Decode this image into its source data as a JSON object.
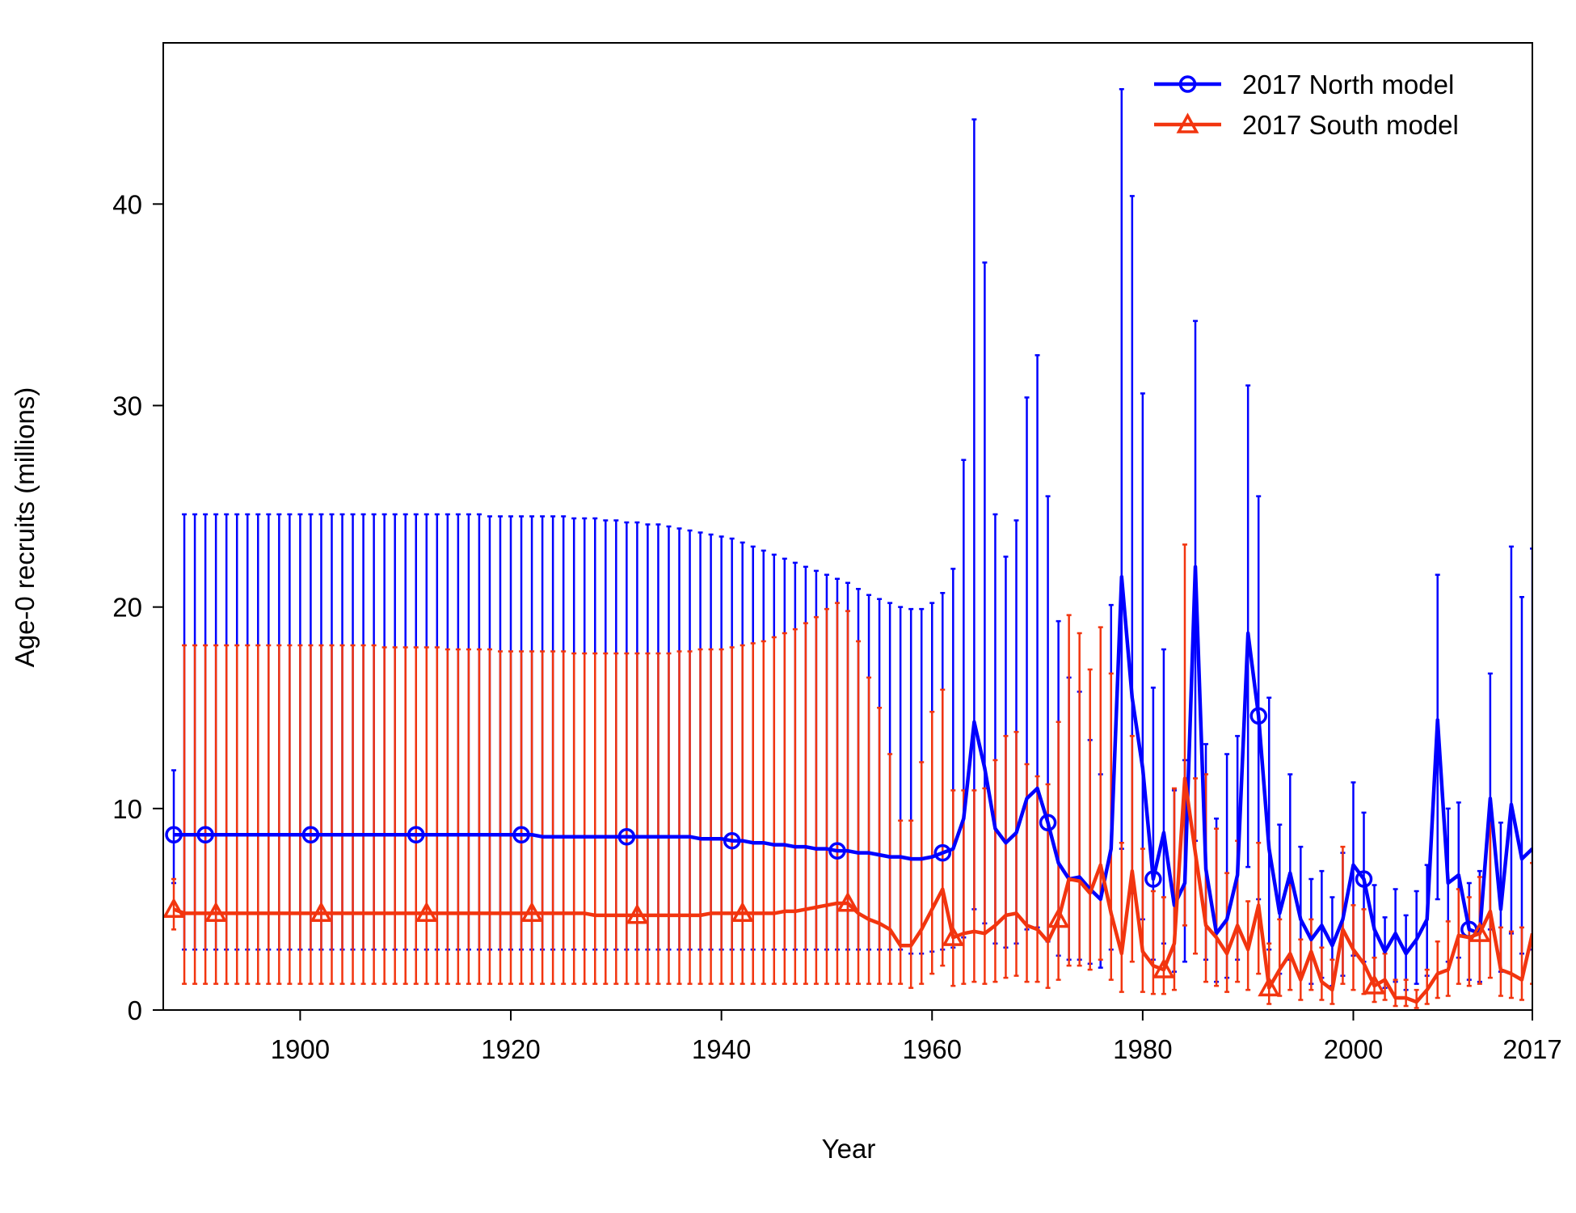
{
  "chart_data": {
    "type": "line",
    "x_label": "Year",
    "y_label": "Age-0 recruits (millions)",
    "xlim": [
      1887,
      2017
    ],
    "ylim": [
      0,
      48
    ],
    "xticks": [
      1900,
      1920,
      1940,
      1960,
      1980,
      2000,
      2017
    ],
    "yticks": [
      0,
      10,
      20,
      30,
      40
    ],
    "legend": "top-right",
    "x": [
      1888,
      1889,
      1890,
      1891,
      1892,
      1893,
      1894,
      1895,
      1896,
      1897,
      1898,
      1899,
      1900,
      1901,
      1902,
      1903,
      1904,
      1905,
      1906,
      1907,
      1908,
      1909,
      1910,
      1911,
      1912,
      1913,
      1914,
      1915,
      1916,
      1917,
      1918,
      1919,
      1920,
      1921,
      1922,
      1923,
      1924,
      1925,
      1926,
      1927,
      1928,
      1929,
      1930,
      1931,
      1932,
      1933,
      1934,
      1935,
      1936,
      1937,
      1938,
      1939,
      1940,
      1941,
      1942,
      1943,
      1944,
      1945,
      1946,
      1947,
      1948,
      1949,
      1950,
      1951,
      1952,
      1953,
      1954,
      1955,
      1956,
      1957,
      1958,
      1959,
      1960,
      1961,
      1962,
      1963,
      1964,
      1965,
      1966,
      1967,
      1968,
      1969,
      1970,
      1971,
      1972,
      1973,
      1974,
      1975,
      1976,
      1977,
      1978,
      1979,
      1980,
      1981,
      1982,
      1983,
      1984,
      1985,
      1986,
      1987,
      1988,
      1989,
      1990,
      1991,
      1992,
      1993,
      1994,
      1995,
      1996,
      1997,
      1998,
      1999,
      2000,
      2001,
      2002,
      2003,
      2004,
      2005,
      2006,
      2007,
      2008,
      2009,
      2010,
      2011,
      2012,
      2013,
      2014,
      2015,
      2016,
      2017
    ],
    "series": [
      {
        "name": "2017 North model",
        "color": "#0000ff",
        "marker": "circle",
        "values": [
          8.7,
          8.7,
          8.7,
          8.7,
          8.7,
          8.7,
          8.7,
          8.7,
          8.7,
          8.7,
          8.7,
          8.7,
          8.7,
          8.7,
          8.7,
          8.7,
          8.7,
          8.7,
          8.7,
          8.7,
          8.7,
          8.7,
          8.7,
          8.7,
          8.7,
          8.7,
          8.7,
          8.7,
          8.7,
          8.7,
          8.7,
          8.7,
          8.7,
          8.7,
          8.7,
          8.6,
          8.6,
          8.6,
          8.6,
          8.6,
          8.6,
          8.6,
          8.6,
          8.6,
          8.6,
          8.6,
          8.6,
          8.6,
          8.6,
          8.6,
          8.5,
          8.5,
          8.5,
          8.4,
          8.4,
          8.3,
          8.3,
          8.2,
          8.2,
          8.1,
          8.1,
          8.0,
          8.0,
          7.9,
          7.9,
          7.8,
          7.8,
          7.7,
          7.6,
          7.6,
          7.5,
          7.5,
          7.6,
          7.8,
          8.0,
          9.5,
          14.3,
          12.0,
          9.0,
          8.3,
          8.8,
          10.5,
          11.0,
          9.3,
          7.3,
          6.5,
          6.6,
          6.0,
          5.5,
          8.0,
          21.5,
          15.5,
          12.0,
          6.5,
          8.8,
          5.2,
          6.3,
          22.0,
          7.0,
          3.8,
          4.5,
          6.7,
          18.7,
          14.6,
          8.0,
          4.8,
          6.8,
          4.5,
          3.5,
          4.2,
          3.2,
          4.5,
          7.2,
          6.5,
          4.0,
          2.9,
          3.8,
          2.8,
          3.5,
          4.5,
          14.4,
          6.3,
          6.7,
          4.0,
          3.8,
          10.5,
          5.0,
          10.2,
          7.5,
          8.0
        ],
        "lower": [
          6.3,
          3.0,
          3.0,
          3.0,
          3.0,
          3.0,
          3.0,
          3.0,
          3.0,
          3.0,
          3.0,
          3.0,
          3.0,
          3.0,
          3.0,
          3.0,
          3.0,
          3.0,
          3.0,
          3.0,
          3.0,
          3.0,
          3.0,
          3.0,
          3.0,
          3.0,
          3.0,
          3.0,
          3.0,
          3.0,
          3.0,
          3.0,
          3.0,
          3.0,
          3.0,
          3.0,
          3.0,
          3.0,
          3.0,
          3.0,
          3.0,
          3.0,
          3.0,
          3.0,
          3.0,
          3.0,
          3.0,
          3.0,
          3.0,
          3.0,
          3.0,
          3.0,
          3.0,
          3.0,
          3.0,
          3.0,
          3.0,
          3.0,
          3.0,
          3.0,
          3.0,
          3.0,
          3.0,
          3.0,
          3.0,
          3.0,
          3.0,
          3.0,
          3.0,
          3.0,
          2.8,
          2.8,
          2.9,
          3.0,
          3.1,
          3.6,
          5.0,
          4.3,
          3.3,
          3.1,
          3.3,
          4.0,
          4.1,
          3.4,
          2.7,
          2.5,
          2.5,
          2.3,
          2.1,
          3.0,
          8.0,
          5.8,
          4.5,
          2.5,
          3.3,
          1.9,
          2.4,
          8.4,
          2.5,
          1.4,
          1.6,
          2.5,
          7.1,
          5.5,
          3.0,
          1.8,
          2.5,
          1.7,
          1.3,
          1.6,
          1.2,
          1.7,
          2.7,
          2.4,
          1.5,
          1.1,
          1.4,
          1.0,
          1.3,
          1.7,
          5.5,
          2.4,
          2.6,
          1.5,
          1.4,
          4.0,
          1.9,
          3.8,
          2.8,
          3.0
        ],
        "upper": [
          11.9,
          24.6,
          24.6,
          24.6,
          24.6,
          24.6,
          24.6,
          24.6,
          24.6,
          24.6,
          24.6,
          24.6,
          24.6,
          24.6,
          24.6,
          24.6,
          24.6,
          24.6,
          24.6,
          24.6,
          24.6,
          24.6,
          24.6,
          24.6,
          24.6,
          24.6,
          24.6,
          24.6,
          24.6,
          24.6,
          24.5,
          24.5,
          24.5,
          24.5,
          24.5,
          24.5,
          24.5,
          24.5,
          24.4,
          24.4,
          24.4,
          24.3,
          24.3,
          24.2,
          24.2,
          24.1,
          24.1,
          24.0,
          23.9,
          23.8,
          23.7,
          23.6,
          23.5,
          23.4,
          23.2,
          23.0,
          22.8,
          22.6,
          22.4,
          22.2,
          22.0,
          21.8,
          21.6,
          21.4,
          21.2,
          20.9,
          20.6,
          20.4,
          20.2,
          20.0,
          19.9,
          19.9,
          20.2,
          20.7,
          21.9,
          27.3,
          44.2,
          37.1,
          24.6,
          22.5,
          24.3,
          30.4,
          32.5,
          25.5,
          19.3,
          16.5,
          15.8,
          13.4,
          11.7,
          20.1,
          45.7,
          40.4,
          30.6,
          16.0,
          17.9,
          10.9,
          12.4,
          34.2,
          13.2,
          9.5,
          12.7,
          13.6,
          31.0,
          25.5,
          15.5,
          9.2,
          11.7,
          8.1,
          6.5,
          6.9,
          5.6,
          7.8,
          11.3,
          9.8,
          6.2,
          4.6,
          6.0,
          4.7,
          5.9,
          7.2,
          21.6,
          10.0,
          10.3,
          6.3,
          6.9,
          16.7,
          9.3,
          23.0,
          20.5,
          22.9
        ]
      },
      {
        "name": "2017 South model",
        "color": "#f2350f",
        "marker": "triangle",
        "values": [
          5.0,
          4.8,
          4.8,
          4.8,
          4.8,
          4.8,
          4.8,
          4.8,
          4.8,
          4.8,
          4.8,
          4.8,
          4.8,
          4.8,
          4.8,
          4.8,
          4.8,
          4.8,
          4.8,
          4.8,
          4.8,
          4.8,
          4.8,
          4.8,
          4.8,
          4.8,
          4.8,
          4.8,
          4.8,
          4.8,
          4.8,
          4.8,
          4.8,
          4.8,
          4.8,
          4.8,
          4.8,
          4.8,
          4.8,
          4.8,
          4.7,
          4.7,
          4.7,
          4.7,
          4.7,
          4.7,
          4.7,
          4.7,
          4.7,
          4.7,
          4.7,
          4.8,
          4.8,
          4.8,
          4.8,
          4.8,
          4.8,
          4.8,
          4.9,
          4.9,
          5.0,
          5.1,
          5.2,
          5.3,
          5.3,
          4.8,
          4.5,
          4.3,
          4.0,
          3.2,
          3.2,
          4.0,
          5.0,
          6.0,
          3.6,
          3.8,
          3.9,
          3.8,
          4.2,
          4.7,
          4.8,
          4.2,
          4.0,
          3.4,
          4.5,
          6.5,
          6.4,
          5.8,
          7.2,
          4.8,
          2.8,
          6.9,
          2.9,
          2.2,
          2.0,
          3.3,
          11.5,
          7.8,
          4.2,
          3.6,
          2.8,
          4.2,
          3.0,
          5.2,
          1.1,
          2.0,
          2.8,
          1.5,
          2.9,
          1.4,
          1.0,
          4.0,
          3.0,
          2.3,
          1.2,
          1.5,
          0.6,
          0.6,
          0.4,
          1.0,
          1.8,
          2.0,
          3.7,
          3.6,
          3.8,
          4.9,
          2.0,
          1.8,
          1.5,
          3.8
        ],
        "lower": [
          4.0,
          1.3,
          1.3,
          1.3,
          1.3,
          1.3,
          1.3,
          1.3,
          1.3,
          1.3,
          1.3,
          1.3,
          1.3,
          1.3,
          1.3,
          1.3,
          1.3,
          1.3,
          1.3,
          1.3,
          1.3,
          1.3,
          1.3,
          1.3,
          1.3,
          1.3,
          1.3,
          1.3,
          1.3,
          1.3,
          1.3,
          1.3,
          1.3,
          1.3,
          1.3,
          1.3,
          1.3,
          1.3,
          1.3,
          1.3,
          1.3,
          1.3,
          1.3,
          1.3,
          1.3,
          1.3,
          1.3,
          1.3,
          1.3,
          1.3,
          1.3,
          1.3,
          1.3,
          1.3,
          1.3,
          1.3,
          1.3,
          1.3,
          1.3,
          1.3,
          1.3,
          1.3,
          1.3,
          1.3,
          1.3,
          1.3,
          1.3,
          1.3,
          1.3,
          1.3,
          1.1,
          1.3,
          1.8,
          2.2,
          1.2,
          1.3,
          1.4,
          1.3,
          1.4,
          1.6,
          1.7,
          1.4,
          1.4,
          1.1,
          1.5,
          2.2,
          2.2,
          2.0,
          2.5,
          1.5,
          0.9,
          2.4,
          0.9,
          0.8,
          0.8,
          1.0,
          4.2,
          2.8,
          1.4,
          1.2,
          0.9,
          1.4,
          1.0,
          1.8,
          0.3,
          0.7,
          1.0,
          0.5,
          1.0,
          0.5,
          0.3,
          1.3,
          1.0,
          0.8,
          0.4,
          0.5,
          0.2,
          0.2,
          0.1,
          0.3,
          0.6,
          0.7,
          1.3,
          1.2,
          1.3,
          1.6,
          0.7,
          0.6,
          0.5,
          1.3
        ],
        "upper": [
          6.5,
          18.1,
          18.1,
          18.1,
          18.1,
          18.1,
          18.1,
          18.1,
          18.1,
          18.1,
          18.1,
          18.1,
          18.1,
          18.1,
          18.1,
          18.1,
          18.1,
          18.1,
          18.1,
          18.1,
          18.0,
          18.0,
          18.0,
          18.0,
          18.0,
          18.0,
          17.9,
          17.9,
          17.9,
          17.9,
          17.9,
          17.8,
          17.8,
          17.8,
          17.8,
          17.8,
          17.8,
          17.8,
          17.7,
          17.7,
          17.7,
          17.7,
          17.7,
          17.7,
          17.7,
          17.7,
          17.7,
          17.7,
          17.8,
          17.8,
          17.9,
          17.9,
          17.9,
          18.0,
          18.1,
          18.2,
          18.3,
          18.5,
          18.7,
          18.9,
          19.2,
          19.5,
          19.9,
          20.2,
          19.8,
          18.3,
          16.5,
          15.0,
          12.7,
          9.4,
          9.4,
          12.3,
          14.8,
          15.9,
          10.9,
          10.9,
          10.9,
          11.0,
          12.4,
          13.6,
          13.8,
          12.2,
          11.6,
          11.2,
          14.3,
          19.6,
          18.7,
          16.9,
          19.0,
          16.7,
          8.3,
          13.6,
          8.0,
          5.9,
          5.6,
          11.0,
          23.1,
          11.5,
          11.7,
          9.0,
          6.8,
          8.4,
          5.4,
          8.3,
          3.3,
          4.5,
          6.2,
          3.5,
          4.5,
          3.1,
          2.5,
          8.1,
          5.2,
          5.0,
          2.6,
          2.8,
          1.5,
          1.5,
          1.0,
          2.0,
          3.4,
          4.4,
          6.0,
          5.6,
          6.6,
          9.3,
          4.1,
          3.9,
          4.1,
          7.3
        ]
      }
    ]
  }
}
